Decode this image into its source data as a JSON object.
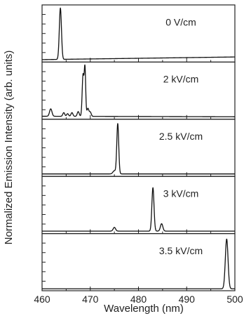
{
  "chart_data": {
    "type": "line",
    "xlabel": "Wavelength (nm)",
    "ylabel": "Normalized Emission Intensity (arb. units)",
    "xlim": [
      460,
      500
    ],
    "x_ticks": [
      "460",
      "470",
      "480",
      "490",
      "500"
    ],
    "ylim": [
      0,
      1
    ],
    "grid": false,
    "panels": [
      {
        "label": "0 V/cm",
        "peaks": [
          {
            "x": 463.8,
            "y": 0.97,
            "w": 0.22
          }
        ],
        "baseline": {
          "start": 0.02,
          "end": 0.07
        }
      },
      {
        "label": "2 kV/cm",
        "peaks": [
          {
            "x": 461.8,
            "y": 0.14,
            "w": 0.25
          },
          {
            "x": 464.5,
            "y": 0.07,
            "w": 0.2
          },
          {
            "x": 465.3,
            "y": 0.05,
            "w": 0.2
          },
          {
            "x": 466.2,
            "y": 0.07,
            "w": 0.2
          },
          {
            "x": 467.5,
            "y": 0.09,
            "w": 0.2
          },
          {
            "x": 468.5,
            "y": 0.78,
            "w": 0.18
          },
          {
            "x": 468.9,
            "y": 0.9,
            "w": 0.15
          },
          {
            "x": 469.5,
            "y": 0.15,
            "w": 0.2
          },
          {
            "x": 470.0,
            "y": 0.08,
            "w": 0.2
          }
        ],
        "baseline": {
          "start": 0.03,
          "end": 0.02
        }
      },
      {
        "label": "2.5 kV/cm",
        "peaks": [
          {
            "x": 475.0,
            "y": 0.06,
            "w": 0.3
          },
          {
            "x": 475.7,
            "y": 0.95,
            "w": 0.2
          }
        ],
        "baseline": {
          "start": 0.02,
          "end": 0.02
        }
      },
      {
        "label": "3 kV/cm",
        "peaks": [
          {
            "x": 475.0,
            "y": 0.07,
            "w": 0.25
          },
          {
            "x": 483.0,
            "y": 0.82,
            "w": 0.22
          },
          {
            "x": 484.8,
            "y": 0.14,
            "w": 0.25
          }
        ],
        "baseline": {
          "start": 0.02,
          "end": 0.02
        }
      },
      {
        "label": "3.5 kV/cm",
        "peaks": [
          {
            "x": 498.3,
            "y": 0.94,
            "w": 0.28
          }
        ],
        "baseline": {
          "start": 0.01,
          "end": 0.01
        }
      }
    ]
  }
}
